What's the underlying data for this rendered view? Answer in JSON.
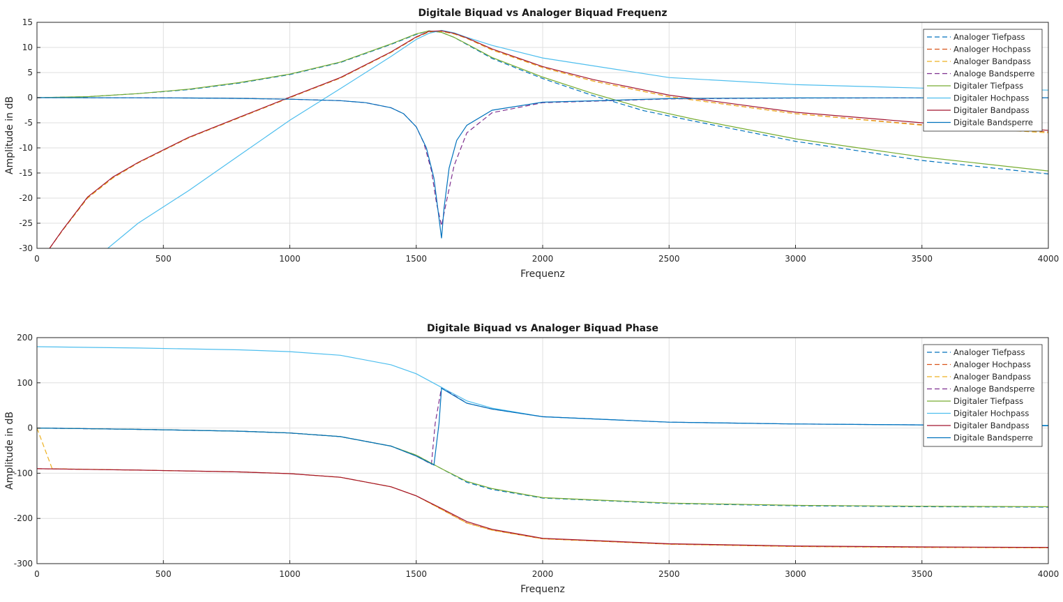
{
  "chart_data": [
    {
      "type": "line",
      "title": "Digitale Biquad vs Analoger Biquad Frequenz",
      "xlabel": "Frequenz",
      "ylabel": "Amplitude in dB",
      "xlim": [
        0,
        4000
      ],
      "ylim": [
        -30,
        15
      ],
      "xticks": [
        0,
        500,
        1000,
        1500,
        2000,
        2500,
        3000,
        3500,
        4000
      ],
      "yticks": [
        15,
        10,
        5,
        0,
        -5,
        -10,
        -15,
        -20,
        -25,
        -30
      ],
      "grid": true,
      "legend_position": "top-right",
      "series": [
        {
          "name": "Analoger Tiefpass",
          "color": "#0072BD",
          "dash": true,
          "x": [
            0,
            200,
            400,
            600,
            800,
            1000,
            1200,
            1400,
            1500,
            1550,
            1600,
            1650,
            1700,
            1800,
            2000,
            2200,
            2400,
            2600,
            3000,
            3500,
            4000
          ],
          "y": [
            0,
            0.2,
            0.8,
            1.6,
            2.9,
            4.6,
            7.0,
            10.6,
            12.6,
            13.3,
            13.0,
            12.0,
            10.6,
            7.8,
            3.8,
            0.4,
            -2.6,
            -4.7,
            -8.7,
            -12.5,
            -15.2
          ]
        },
        {
          "name": "Analoger Hochpass",
          "color": "#D95319",
          "dash": true,
          "x": [
            50,
            100,
            200,
            300,
            400,
            600,
            800,
            1000,
            1200,
            1400,
            1500,
            1550,
            1600,
            1650,
            1700,
            1800,
            2000,
            2200,
            2500,
            3000,
            3500,
            4000
          ],
          "y": [
            -30,
            -26.5,
            -20,
            -16,
            -13,
            -8,
            -4,
            0,
            3.9,
            9,
            12,
            13.1,
            13.2,
            12.7,
            11.8,
            9.5,
            6.0,
            3.3,
            0.2,
            -3.2,
            -5.4,
            -6.8
          ]
        },
        {
          "name": "Analoger Bandpass",
          "color": "#EDB120",
          "dash": true,
          "x": [
            50,
            100,
            200,
            300,
            400,
            600,
            800,
            1000,
            1200,
            1400,
            1500,
            1550,
            1600,
            1650,
            1700,
            1800,
            2000,
            2200,
            2500,
            3000,
            3500,
            4000
          ],
          "y": [
            -30,
            -26.5,
            -20,
            -16,
            -13,
            -8,
            -4,
            0,
            3.9,
            9,
            12,
            13.1,
            13.2,
            12.7,
            11.8,
            9.5,
            6.0,
            3.3,
            0.2,
            -3.2,
            -5.5,
            -7.0
          ]
        },
        {
          "name": "Analoge Bandsperre",
          "color": "#7E2F8E",
          "dash": true,
          "x": [
            0,
            200,
            400,
            600,
            800,
            1000,
            1200,
            1300,
            1400,
            1450,
            1500,
            1530,
            1560,
            1580,
            1600,
            1620,
            1650,
            1700,
            1800,
            2000,
            2500,
            3000,
            4000
          ],
          "y": [
            0,
            -0.01,
            -0.03,
            -0.07,
            -0.15,
            -0.3,
            -0.6,
            -1.0,
            -2.0,
            -3.2,
            -5.8,
            -9.0,
            -14.5,
            -21.0,
            -25.5,
            -20.5,
            -13.5,
            -7.0,
            -3.0,
            -1.0,
            -0.25,
            -0.08,
            -0.02
          ]
        },
        {
          "name": "Digitaler Tiefpass",
          "color": "#77AC30",
          "dash": false,
          "x": [
            0,
            200,
            400,
            600,
            800,
            1000,
            1200,
            1400,
            1500,
            1550,
            1600,
            1650,
            1700,
            1800,
            2000,
            2200,
            2400,
            2600,
            3000,
            3500,
            4000
          ],
          "y": [
            0,
            0.2,
            0.8,
            1.7,
            3.0,
            4.7,
            7.1,
            10.7,
            12.7,
            13.3,
            13.0,
            12.0,
            10.7,
            8.0,
            4.1,
            0.8,
            -2.1,
            -4.3,
            -8.2,
            -11.8,
            -14.6
          ]
        },
        {
          "name": "Digitaler Hochpass",
          "color": "#4DBEEE",
          "dash": false,
          "x": [
            280,
            400,
            600,
            800,
            1000,
            1200,
            1400,
            1500,
            1550,
            1600,
            1650,
            1700,
            1800,
            2000,
            2500,
            3000,
            3500,
            4000
          ],
          "y": [
            -30,
            -25,
            -18.5,
            -11.5,
            -4.5,
            1.8,
            8.2,
            11.6,
            12.8,
            13.4,
            12.9,
            12.0,
            10.4,
            7.9,
            4.0,
            2.6,
            1.9,
            1.5
          ]
        },
        {
          "name": "Digitaler Bandpass",
          "color": "#A2142F",
          "dash": false,
          "x": [
            50,
            100,
            200,
            300,
            400,
            600,
            800,
            1000,
            1200,
            1400,
            1500,
            1550,
            1600,
            1650,
            1700,
            1800,
            2000,
            2200,
            2500,
            3000,
            3500,
            4000
          ],
          "y": [
            -30,
            -26.4,
            -19.8,
            -15.8,
            -12.9,
            -7.9,
            -3.9,
            0.1,
            4.0,
            9.1,
            12.1,
            13.2,
            13.3,
            12.8,
            11.9,
            9.7,
            6.2,
            3.6,
            0.5,
            -2.9,
            -5.0,
            -6.5
          ]
        },
        {
          "name": "Digitale Bandsperre",
          "color": "#0072BD",
          "dash": false,
          "x": [
            0,
            200,
            400,
            600,
            800,
            1000,
            1200,
            1300,
            1400,
            1450,
            1500,
            1540,
            1570,
            1590,
            1600,
            1610,
            1630,
            1660,
            1700,
            1800,
            2000,
            2500,
            3000,
            4000
          ],
          "y": [
            0,
            -0.01,
            -0.03,
            -0.07,
            -0.15,
            -0.3,
            -0.6,
            -1.0,
            -2.0,
            -3.2,
            -5.8,
            -10.0,
            -16.0,
            -24.0,
            -28.0,
            -22.0,
            -14.0,
            -8.5,
            -5.5,
            -2.5,
            -0.9,
            -0.2,
            -0.06,
            -0.02
          ]
        }
      ]
    },
    {
      "type": "line",
      "title": "Digitale Biquad vs Analoger Biquad Phase",
      "xlabel": "Frequenz",
      "ylabel": "Amplitude in dB",
      "xlim": [
        0,
        4000
      ],
      "ylim": [
        -300,
        200
      ],
      "xticks": [
        0,
        500,
        1000,
        1500,
        2000,
        2500,
        3000,
        3500,
        4000
      ],
      "yticks": [
        200,
        100,
        0,
        -100,
        -200,
        -300
      ],
      "grid": true,
      "legend_position": "top-right",
      "series": [
        {
          "name": "Analoger Tiefpass",
          "color": "#0072BD",
          "dash": true,
          "x": [
            0,
            400,
            800,
            1000,
            1200,
            1400,
            1500,
            1600,
            1700,
            1800,
            2000,
            2500,
            3000,
            3500,
            4000
          ],
          "y": [
            0,
            -3,
            -7,
            -11,
            -19,
            -40,
            -60,
            -90,
            -120,
            -136,
            -155,
            -167,
            -172,
            -174,
            -175
          ]
        },
        {
          "name": "Analoger Hochpass",
          "color": "#D95319",
          "dash": true,
          "x": [
            0,
            400,
            800,
            1000,
            1200,
            1400,
            1500,
            1600,
            1700,
            1800,
            2000,
            2500,
            3000,
            3500,
            4000
          ],
          "y": [
            -90,
            -93,
            -97,
            -101,
            -109,
            -130,
            -150,
            -180,
            -210,
            -226,
            -245,
            -257,
            -262,
            -264,
            -265
          ]
        },
        {
          "name": "Analoger Bandpass",
          "color": "#EDB120",
          "dash": true,
          "x": [
            0,
            40,
            60,
            400,
            800,
            1000,
            1200,
            1400,
            1500,
            1600,
            1700,
            1800,
            2000,
            2500,
            3000,
            3500,
            4000
          ],
          "y": [
            0,
            -60,
            -90,
            -93,
            -97,
            -101,
            -109,
            -130,
            -150,
            -180,
            -210,
            -226,
            -245,
            -257,
            -262,
            -264,
            -265
          ]
        },
        {
          "name": "Analoge Bandsperre",
          "color": "#7E2F8E",
          "dash": true,
          "x": [
            0,
            400,
            800,
            1000,
            1200,
            1400,
            1500,
            1560,
            1575,
            1600,
            1700,
            1800,
            2000,
            2500,
            3000,
            3500,
            4000
          ],
          "y": [
            0,
            -3,
            -7,
            -11,
            -19,
            -40,
            -62,
            -80,
            10,
            90,
            55,
            42,
            25,
            13,
            9,
            7,
            5
          ]
        },
        {
          "name": "Digitaler Tiefpass",
          "color": "#77AC30",
          "dash": false,
          "x": [
            0,
            400,
            800,
            1000,
            1200,
            1400,
            1500,
            1600,
            1700,
            1800,
            2000,
            2500,
            3000,
            3500,
            4000
          ],
          "y": [
            0,
            -3,
            -7,
            -11,
            -19,
            -40,
            -60,
            -90,
            -118,
            -134,
            -154,
            -166,
            -171,
            -173,
            -174
          ]
        },
        {
          "name": "Digitaler Hochpass",
          "color": "#4DBEEE",
          "dash": false,
          "x": [
            0,
            400,
            800,
            1000,
            1200,
            1400,
            1500,
            1600,
            1700,
            1800,
            2000,
            2500,
            3000,
            3500,
            4000
          ],
          "y": [
            180,
            177,
            173,
            169,
            161,
            140,
            120,
            90,
            60,
            44,
            25,
            13,
            9,
            7,
            6
          ]
        },
        {
          "name": "Digitaler Bandpass",
          "color": "#A2142F",
          "dash": false,
          "x": [
            0,
            400,
            800,
            1000,
            1200,
            1400,
            1500,
            1600,
            1700,
            1800,
            2000,
            2500,
            3000,
            3500,
            4000
          ],
          "y": [
            -90,
            -93,
            -97,
            -101,
            -109,
            -130,
            -150,
            -178,
            -207,
            -224,
            -244,
            -256,
            -261,
            -263,
            -264
          ]
        },
        {
          "name": "Digitale Bandsperre",
          "color": "#0072BD",
          "dash": false,
          "x": [
            0,
            400,
            800,
            1000,
            1200,
            1400,
            1500,
            1570,
            1590,
            1600,
            1700,
            1800,
            2000,
            2500,
            3000,
            3500,
            4000
          ],
          "y": [
            0,
            -3,
            -7,
            -11,
            -19,
            -40,
            -62,
            -82,
            10,
            88,
            55,
            42,
            25,
            13,
            9,
            7,
            5
          ]
        }
      ]
    }
  ]
}
